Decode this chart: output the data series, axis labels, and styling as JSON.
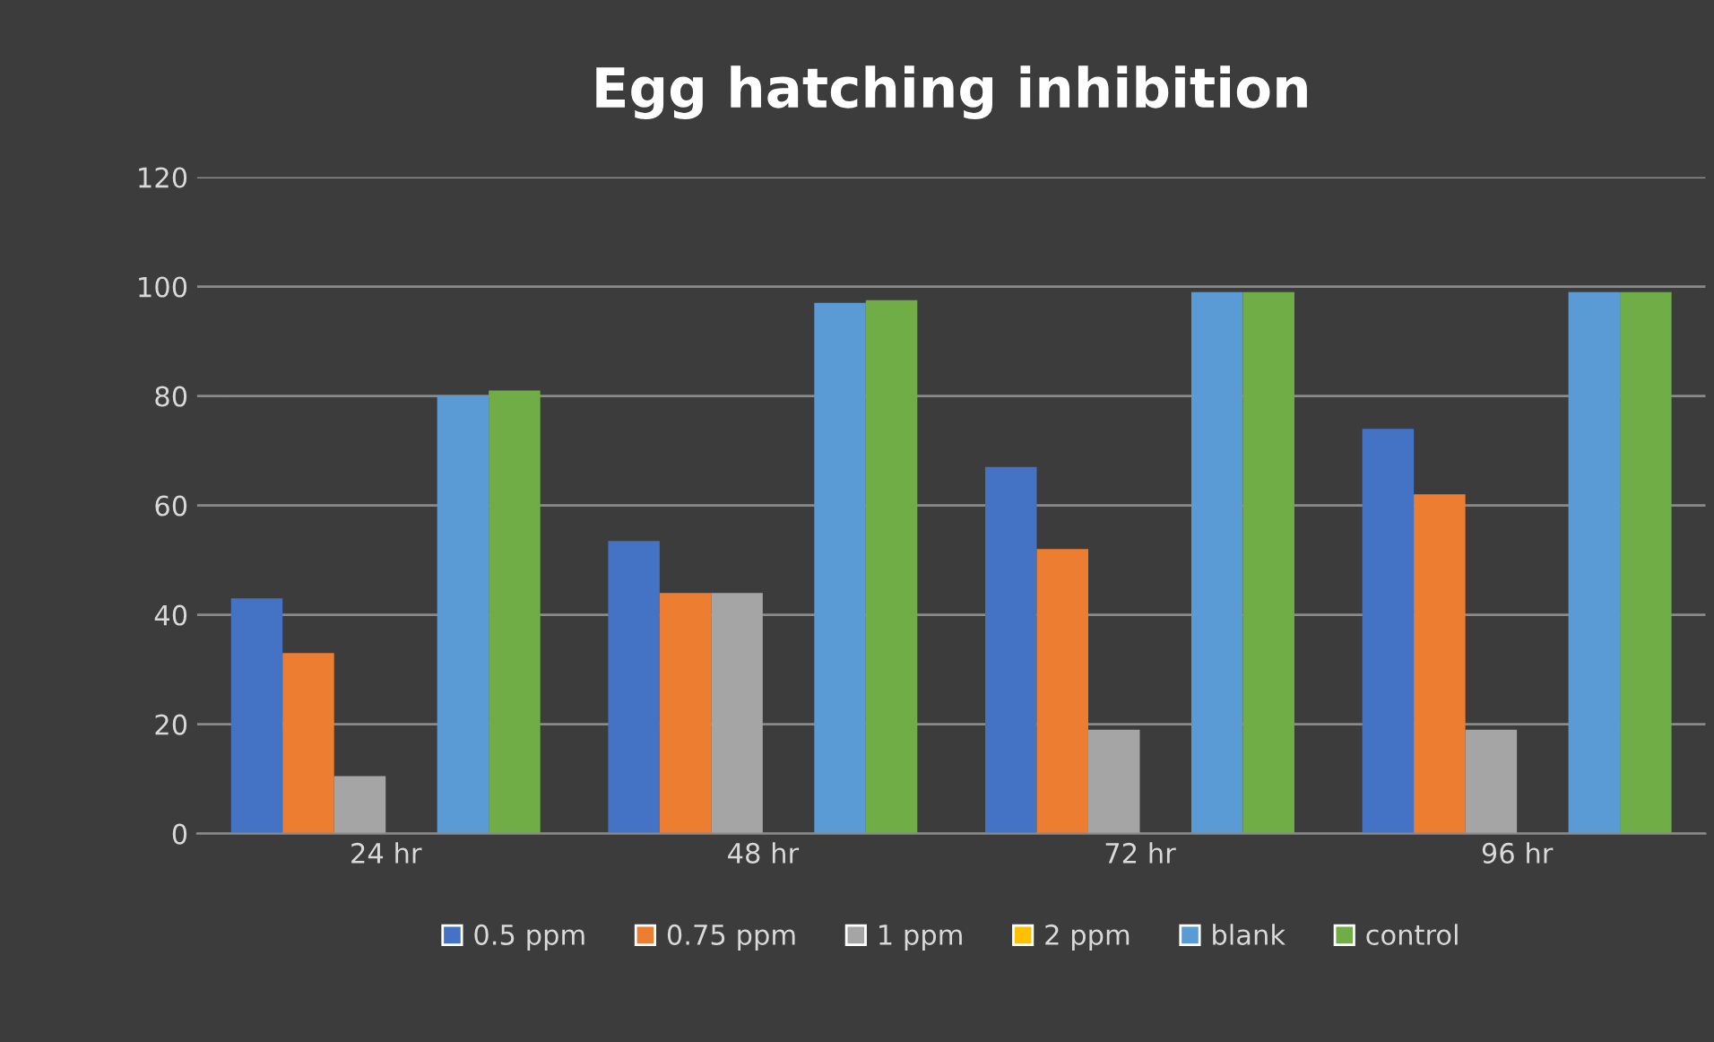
{
  "chart_data": {
    "type": "bar",
    "title": "Egg hatching inhibition",
    "categories": [
      "24 hr",
      "48 hr",
      "72 hr",
      "96 hr"
    ],
    "series": [
      {
        "name": "0.5 ppm",
        "color": "#4472c4",
        "values": [
          43,
          53.5,
          67,
          74
        ]
      },
      {
        "name": "0.75 ppm",
        "color": "#ed7d31",
        "values": [
          33,
          44,
          52,
          62
        ]
      },
      {
        "name": "1 ppm",
        "color": "#a5a5a5",
        "values": [
          10.5,
          44,
          19,
          19
        ]
      },
      {
        "name": "2 ppm",
        "color": "#ffc000",
        "values": [
          0,
          0,
          0,
          0
        ]
      },
      {
        "name": "blank",
        "color": "#5b9bd5",
        "values": [
          80,
          97,
          99,
          99
        ]
      },
      {
        "name": "control",
        "color": "#70ad47",
        "values": [
          81,
          97.5,
          99,
          99
        ]
      }
    ],
    "ylim": [
      0,
      120
    ],
    "yticks": [
      0,
      20,
      40,
      60,
      80,
      100,
      120
    ],
    "grid": "y",
    "legend": "bottom"
  }
}
